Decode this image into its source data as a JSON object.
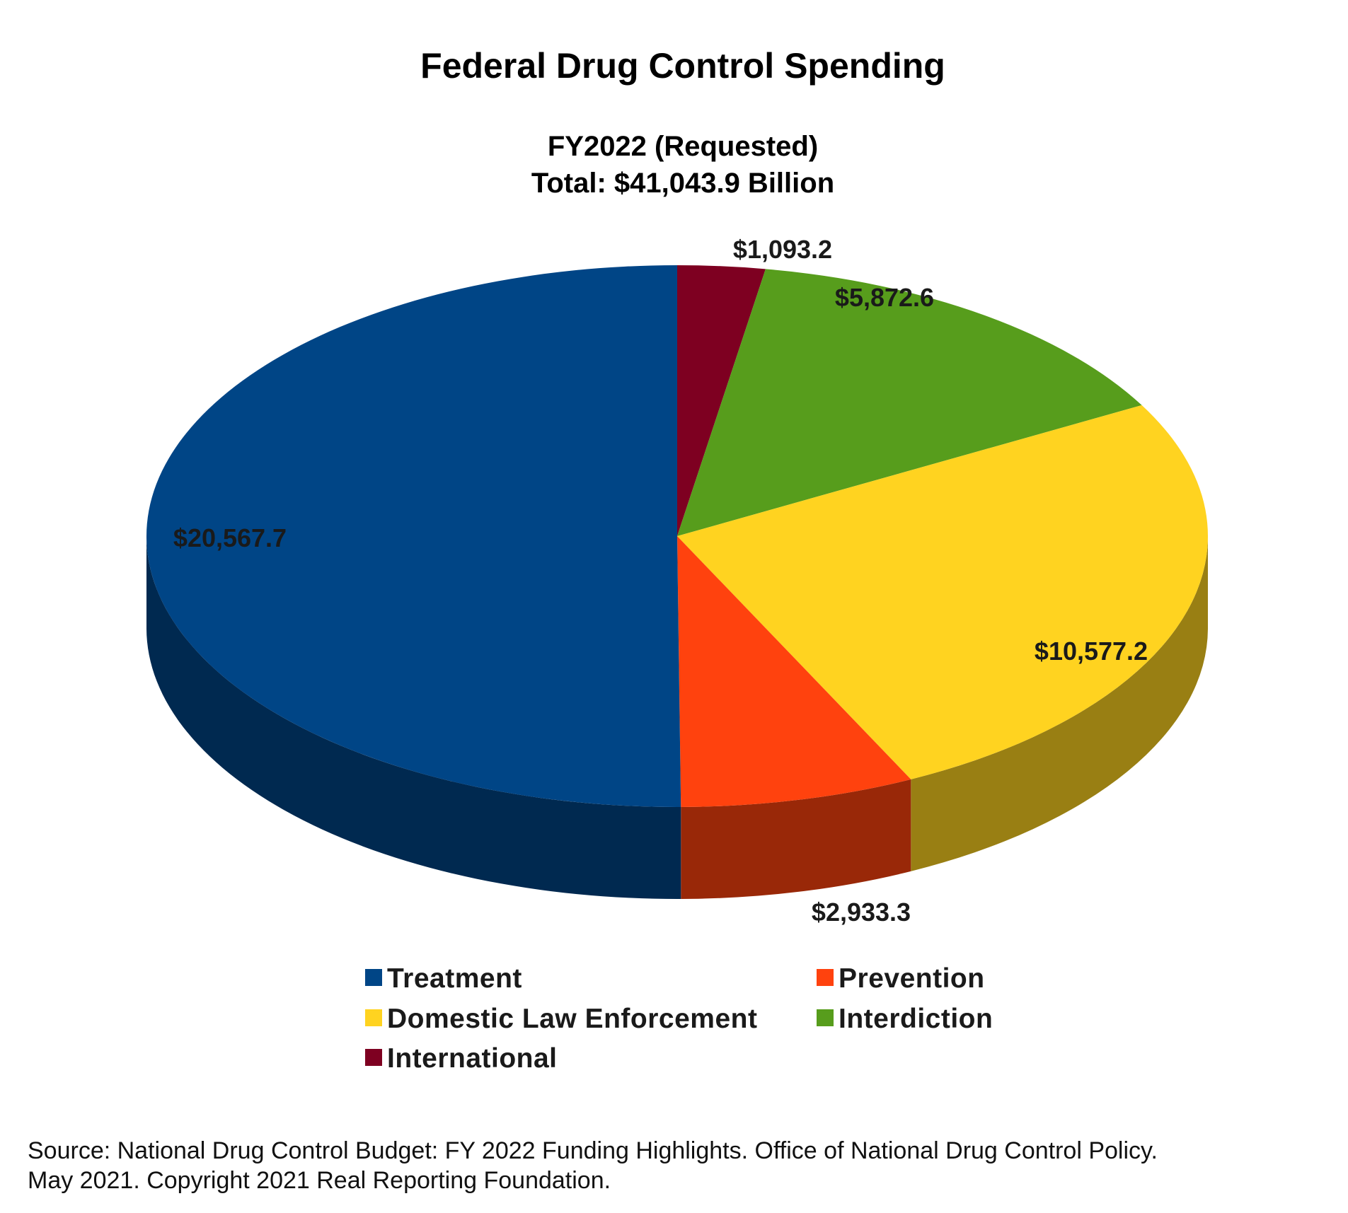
{
  "chart_data": {
    "type": "pie",
    "style": "3d",
    "title": "Federal Drug Control Spending",
    "subtitle_lines": [
      "FY2022 (Requested)",
      "Total: $41,043.9 Billion"
    ],
    "legend_placement": "bottom",
    "slices": [
      {
        "name": "International",
        "value": 1093.2,
        "label": "$1,093.2",
        "color": "#7e0021"
      },
      {
        "name": "Interdiction",
        "value": 5872.6,
        "label": "$5,872.6",
        "color": "#579d1c"
      },
      {
        "name": "Domestic Law Enforcement",
        "value": 10577.2,
        "label": "$10,577.2",
        "color": "#ffd320"
      },
      {
        "name": "Prevention",
        "value": 2933.3,
        "label": "$2,933.3",
        "color": "#ff420e"
      },
      {
        "name": "Treatment",
        "value": 20567.7,
        "label": "$20,567.7",
        "color": "#004586"
      }
    ],
    "legend_order": [
      "Treatment",
      "Prevention",
      "Domestic Law Enforcement",
      "Interdiction",
      "International"
    ]
  },
  "source": {
    "line1": "Source: National Drug Control Budget: FY 2022 Funding Highlights. Office of National Drug Control Policy.",
    "line2": "May 2021. Copyright 2021 Real Reporting Foundation."
  }
}
